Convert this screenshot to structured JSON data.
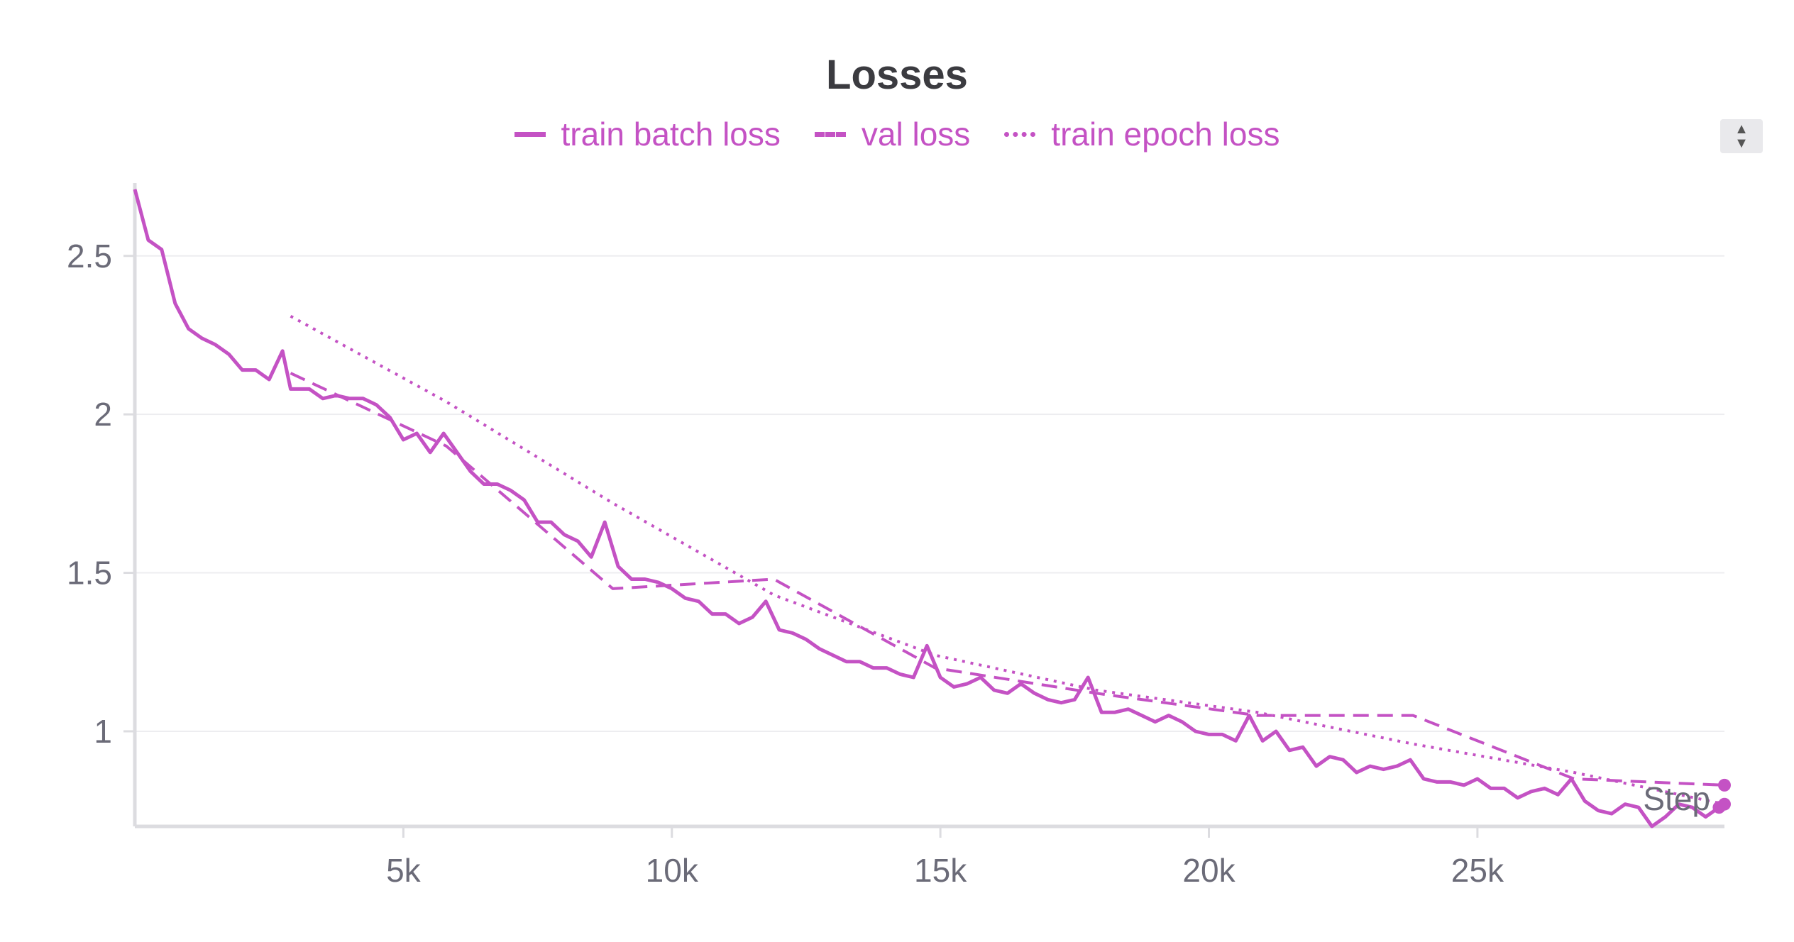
{
  "chart_data": {
    "type": "line",
    "title": "Losses",
    "xlabel": "Step",
    "ylabel": "",
    "xlim": [
      0,
      29600
    ],
    "ylim": [
      0.7,
      2.73
    ],
    "x_ticks": [
      5000,
      10000,
      15000,
      20000,
      25000
    ],
    "x_tick_labels": [
      "5k",
      "10k",
      "15k",
      "20k",
      "25k"
    ],
    "y_ticks": [
      1,
      1.5,
      2,
      2.5
    ],
    "y_tick_labels": [
      "1",
      "1.5",
      "2",
      "2.5"
    ],
    "grid": true,
    "legend_position": "top-center",
    "colors": {
      "series": "#c452c4",
      "axis": "#dcdce0",
      "grid": "#ededf0",
      "tick_text": "#6b6b78",
      "title": "#3b3b40"
    },
    "series": [
      {
        "name": "train batch loss",
        "style": "solid",
        "x": [
          0,
          250,
          500,
          750,
          1000,
          1250,
          1500,
          1750,
          2000,
          2250,
          2500,
          2750,
          2900,
          3000,
          3250,
          3500,
          3750,
          4000,
          4250,
          4500,
          4750,
          5000,
          5250,
          5500,
          5750,
          6000,
          6250,
          6500,
          6750,
          7000,
          7250,
          7500,
          7750,
          8000,
          8250,
          8500,
          8750,
          9000,
          9250,
          9500,
          9750,
          10000,
          10250,
          10500,
          10750,
          11000,
          11250,
          11500,
          11750,
          12000,
          12250,
          12500,
          12750,
          13000,
          13250,
          13500,
          13750,
          14000,
          14250,
          14500,
          14750,
          15000,
          15250,
          15500,
          15750,
          16000,
          16250,
          16500,
          16750,
          17000,
          17250,
          17500,
          17750,
          18000,
          18250,
          18500,
          18750,
          19000,
          19250,
          19500,
          19750,
          20000,
          20250,
          20500,
          20750,
          21000,
          21250,
          21500,
          21750,
          22000,
          22250,
          22500,
          22750,
          23000,
          23250,
          23500,
          23750,
          24000,
          24250,
          24500,
          24750,
          25000,
          25250,
          25500,
          25750,
          26000,
          26250,
          26500,
          26750,
          27000,
          27250,
          27500,
          27750,
          28000,
          28250,
          28500,
          28750,
          29000,
          29250,
          29500
        ],
        "y": [
          2.71,
          2.55,
          2.52,
          2.35,
          2.27,
          2.24,
          2.22,
          2.19,
          2.14,
          2.14,
          2.11,
          2.2,
          2.08,
          2.08,
          2.08,
          2.05,
          2.06,
          2.05,
          2.05,
          2.03,
          1.99,
          1.92,
          1.94,
          1.88,
          1.94,
          1.88,
          1.82,
          1.78,
          1.78,
          1.76,
          1.73,
          1.66,
          1.66,
          1.62,
          1.6,
          1.55,
          1.66,
          1.52,
          1.48,
          1.48,
          1.47,
          1.45,
          1.42,
          1.41,
          1.37,
          1.37,
          1.34,
          1.36,
          1.41,
          1.32,
          1.31,
          1.29,
          1.26,
          1.24,
          1.22,
          1.22,
          1.2,
          1.2,
          1.18,
          1.17,
          1.27,
          1.17,
          1.14,
          1.15,
          1.17,
          1.13,
          1.12,
          1.15,
          1.12,
          1.1,
          1.09,
          1.1,
          1.17,
          1.06,
          1.06,
          1.07,
          1.05,
          1.03,
          1.05,
          1.03,
          1.0,
          0.99,
          0.99,
          0.97,
          1.05,
          0.97,
          1.0,
          0.94,
          0.95,
          0.89,
          0.92,
          0.91,
          0.87,
          0.89,
          0.88,
          0.89,
          0.91,
          0.85,
          0.84,
          0.84,
          0.83,
          0.85,
          0.82,
          0.82,
          0.79,
          0.81,
          0.82,
          0.8,
          0.85,
          0.78,
          0.75,
          0.74,
          0.77,
          0.76,
          0.7,
          0.73,
          0.77,
          0.76,
          0.73,
          0.76
        ]
      },
      {
        "name": "val loss",
        "style": "dashed",
        "x": [
          2900,
          5800,
          8900,
          11900,
          14900,
          17900,
          20900,
          23800,
          26800,
          29600
        ],
        "y": [
          2.13,
          1.9,
          1.45,
          1.48,
          1.2,
          1.12,
          1.05,
          1.05,
          0.85,
          0.83
        ]
      },
      {
        "name": "train epoch loss",
        "style": "dotted",
        "x": [
          2900,
          5800,
          8900,
          11900,
          14900,
          17900,
          20900,
          23800,
          26800,
          29600
        ],
        "y": [
          2.31,
          2.04,
          1.72,
          1.43,
          1.24,
          1.13,
          1.06,
          0.96,
          0.87,
          0.77
        ]
      }
    ]
  }
}
